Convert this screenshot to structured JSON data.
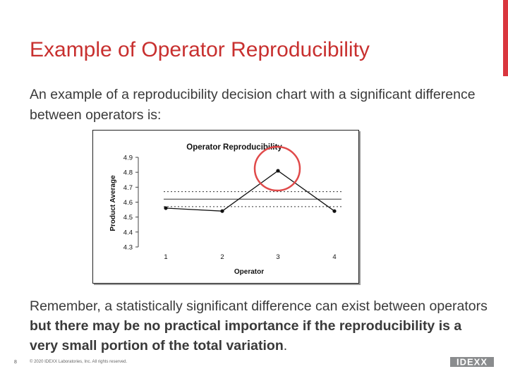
{
  "slide": {
    "title": "Example of Operator Reproducibility",
    "intro": "An example of a reproducibility decision chart with a significant difference between operators is:",
    "remember_plain": "Remember, a statistically significant difference can exist between operators ",
    "remember_bold": "but there may be no practical importance if the reproducibility is a very small portion of the total variation",
    "remember_end": ".",
    "page_number": "8",
    "copyright": "© 2020 IDEXX Laboratories, Inc. All rights reserved.",
    "logo_text": "IDEXX",
    "accent_color": "#d9363e",
    "title_color": "#c8302f"
  },
  "chart_data": {
    "type": "line",
    "title": "Operator Reproducibility",
    "xlabel": "Operator",
    "ylabel": "Product Average",
    "categories": [
      "1",
      "2",
      "3",
      "4"
    ],
    "series": [
      {
        "values": [
          4.56,
          4.54,
          4.81,
          4.54
        ]
      }
    ],
    "reference_lines": {
      "center": 4.62,
      "upper_limit": 4.67,
      "lower_limit": 4.57
    },
    "yticks": [
      "4.3",
      "4.4",
      "4.5",
      "4.6",
      "4.7",
      "4.8",
      "4.9"
    ],
    "ylim": [
      4.3,
      4.9
    ],
    "highlight": {
      "category": "3",
      "color": "#e04a4a"
    }
  }
}
